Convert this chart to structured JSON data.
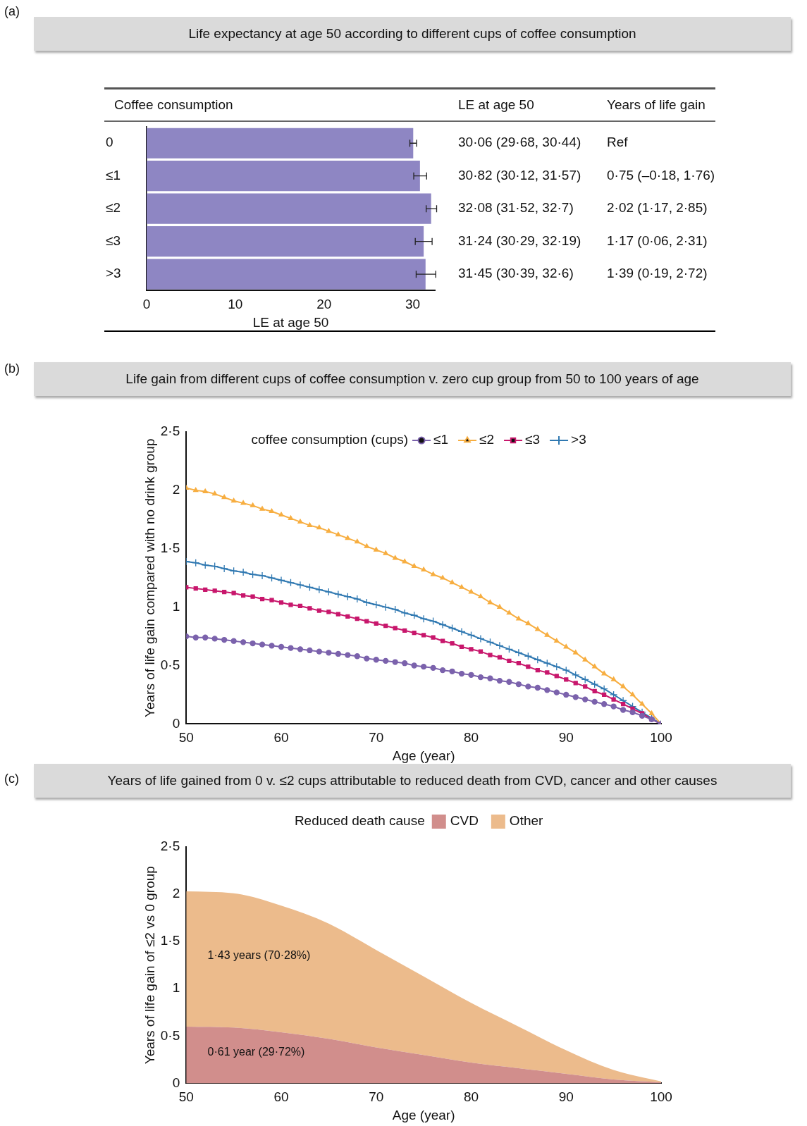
{
  "chart_data": [
    {
      "type": "bar",
      "orientation": "horizontal",
      "title": "Life expectancy at age 50 according to different cups of coffee consumption",
      "ylabel": "Coffee consumption",
      "xlabel": "LE at age 50",
      "categories": [
        "0",
        "≤1",
        "≤2",
        "≤3",
        ">3"
      ],
      "values": [
        30.06,
        30.82,
        32.08,
        31.24,
        31.45
      ],
      "errors": [
        [
          29.68,
          30.44
        ],
        [
          30.12,
          31.57
        ],
        [
          31.52,
          32.7
        ],
        [
          30.29,
          32.19
        ],
        [
          30.39,
          32.6
        ]
      ],
      "color": "#8e86c3",
      "xlim": [
        0,
        32.5
      ],
      "xticks": [
        0,
        10,
        20,
        30
      ],
      "grid": false,
      "annotations": [
        "(a)",
        "LE at age 50",
        "Years of life gain",
        "30·06 (29·68, 30·44)",
        "30·82 (30·12, 31·57)",
        "32·08 (31·52, 32·7)",
        "31·24 (30·29, 32·19)",
        "31·45 (30·39, 32·6)",
        "Ref",
        "0·75 (–0·18, 1·76)",
        "2·02 (1·17, 2·85)",
        "1·17 (0·06, 2·31)",
        "1·39 (0·19, 2·72)"
      ]
    },
    {
      "type": "line",
      "title": "Life gain from different cups of coffee consumption v. zero cup group from 50 to 100 years of age",
      "xlabel": "Age (year)",
      "ylabel": "Years of life gain compared with no drink group",
      "legend_title": "coffee consumption (cups)",
      "legend": "top",
      "grid": false,
      "x": [
        50,
        51,
        52,
        53,
        54,
        55,
        56,
        57,
        58,
        59,
        60,
        61,
        62,
        63,
        64,
        65,
        66,
        67,
        68,
        69,
        70,
        71,
        72,
        73,
        74,
        75,
        76,
        77,
        78,
        79,
        80,
        81,
        82,
        83,
        84,
        85,
        86,
        87,
        88,
        89,
        90,
        91,
        92,
        93,
        94,
        95,
        96,
        97,
        98,
        99,
        100
      ],
      "series": [
        {
          "name": "≤1",
          "color": "#7b62ac",
          "marker": "circle",
          "values": [
            0.75,
            0.74,
            0.74,
            0.73,
            0.72,
            0.71,
            0.7,
            0.69,
            0.68,
            0.67,
            0.66,
            0.65,
            0.64,
            0.63,
            0.62,
            0.61,
            0.6,
            0.59,
            0.58,
            0.56,
            0.55,
            0.54,
            0.53,
            0.52,
            0.5,
            0.49,
            0.48,
            0.46,
            0.45,
            0.43,
            0.42,
            0.4,
            0.39,
            0.37,
            0.36,
            0.34,
            0.32,
            0.31,
            0.29,
            0.27,
            0.25,
            0.23,
            0.21,
            0.19,
            0.17,
            0.15,
            0.12,
            0.1,
            0.07,
            0.04,
            0
          ]
        },
        {
          "name": "≤2",
          "color": "#f7ae41",
          "marker": "triangle",
          "values": [
            2.02,
            2.0,
            1.99,
            1.97,
            1.94,
            1.91,
            1.89,
            1.87,
            1.84,
            1.82,
            1.79,
            1.76,
            1.73,
            1.7,
            1.68,
            1.65,
            1.62,
            1.59,
            1.56,
            1.52,
            1.49,
            1.46,
            1.42,
            1.39,
            1.35,
            1.32,
            1.28,
            1.25,
            1.21,
            1.17,
            1.13,
            1.09,
            1.04,
            1.0,
            0.95,
            0.9,
            0.86,
            0.81,
            0.76,
            0.71,
            0.66,
            0.61,
            0.55,
            0.49,
            0.43,
            0.38,
            0.32,
            0.25,
            0.17,
            0.09,
            0
          ]
        },
        {
          "name": "≤3",
          "color": "#c8176c",
          "marker": "square",
          "values": [
            1.17,
            1.16,
            1.15,
            1.14,
            1.13,
            1.12,
            1.1,
            1.09,
            1.07,
            1.06,
            1.04,
            1.02,
            1.01,
            0.99,
            0.97,
            0.96,
            0.94,
            0.92,
            0.9,
            0.88,
            0.86,
            0.84,
            0.82,
            0.8,
            0.78,
            0.76,
            0.74,
            0.71,
            0.69,
            0.66,
            0.64,
            0.62,
            0.59,
            0.57,
            0.54,
            0.52,
            0.49,
            0.46,
            0.44,
            0.41,
            0.38,
            0.35,
            0.32,
            0.28,
            0.25,
            0.21,
            0.17,
            0.13,
            0.09,
            0.04,
            0
          ]
        },
        {
          "name": ">3",
          "color": "#2f78b1",
          "marker": "cross",
          "values": [
            1.39,
            1.38,
            1.36,
            1.35,
            1.33,
            1.31,
            1.3,
            1.28,
            1.27,
            1.25,
            1.23,
            1.21,
            1.19,
            1.17,
            1.15,
            1.13,
            1.11,
            1.09,
            1.07,
            1.04,
            1.02,
            1.0,
            0.98,
            0.95,
            0.93,
            0.9,
            0.88,
            0.85,
            0.82,
            0.79,
            0.76,
            0.73,
            0.7,
            0.67,
            0.64,
            0.61,
            0.58,
            0.55,
            0.52,
            0.49,
            0.46,
            0.42,
            0.38,
            0.34,
            0.3,
            0.25,
            0.2,
            0.15,
            0.1,
            0.05,
            0
          ]
        }
      ],
      "xlim": [
        50,
        100
      ],
      "xticks": [
        50,
        60,
        70,
        80,
        90,
        100
      ],
      "ylim": [
        0,
        2.5
      ],
      "yticks": [
        0,
        {
          "value": 0.5,
          "label": "0·5"
        },
        1,
        {
          "value": 1.5,
          "label": "1·5"
        },
        2,
        {
          "value": 2.5,
          "label": "2·5"
        }
      ],
      "annotations": [
        "(b)"
      ]
    },
    {
      "type": "area",
      "stacked": true,
      "title": "Years of life gained from 0 v. ≤2 cups attributable to reduced death from CVD, cancer and other causes",
      "xlabel": "Age (year)",
      "ylabel": "Years of life gain of ≤2 vs 0 group",
      "legend_title": "Reduced death cause",
      "legend": "top",
      "grid": false,
      "x": [
        50,
        55,
        60,
        65,
        70,
        75,
        80,
        85,
        90,
        95,
        100
      ],
      "series": [
        {
          "name": "CVD",
          "color": "#d18e8c",
          "values": [
            0.6,
            0.59,
            0.54,
            0.47,
            0.38,
            0.3,
            0.22,
            0.16,
            0.1,
            0.04,
            0.01
          ]
        },
        {
          "name": "Other",
          "color": "#ecbb8c",
          "values": [
            1.43,
            1.42,
            1.34,
            1.22,
            1.03,
            0.83,
            0.63,
            0.44,
            0.25,
            0.1,
            0.01
          ]
        }
      ],
      "xlim": [
        50,
        100
      ],
      "xticks": [
        50,
        60,
        70,
        80,
        90,
        100
      ],
      "ylim": [
        0,
        2.5
      ],
      "yticks": [
        0,
        {
          "value": 0.5,
          "label": "0·5"
        },
        1,
        {
          "value": 1.5,
          "label": "1·5"
        },
        2,
        {
          "value": 2.5,
          "label": "2·5"
        }
      ],
      "annotations": [
        "(c)",
        "1·43 years (70·28%)",
        "0·61 year (29·72%)"
      ]
    }
  ]
}
